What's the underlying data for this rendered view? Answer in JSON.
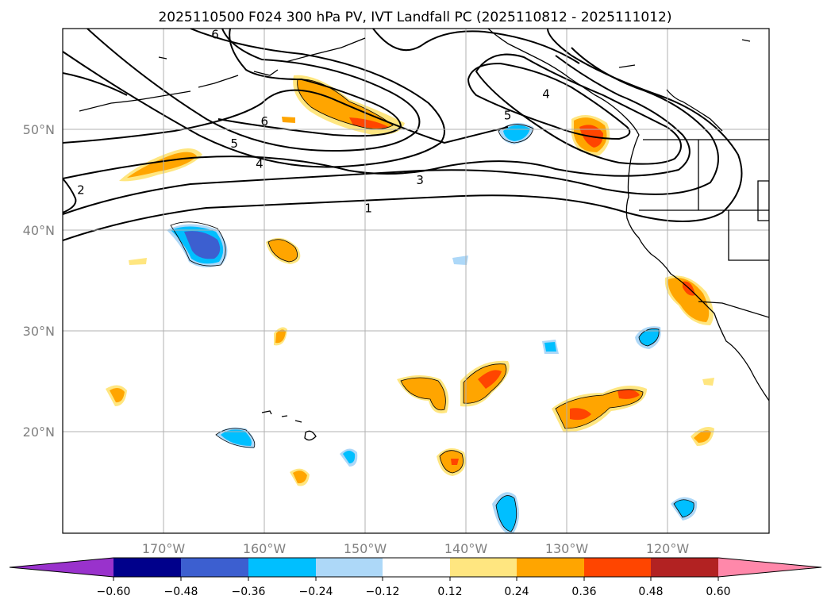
{
  "title": "2025110500 F024 300 hPa PV, IVT Landfall PC (2025110812 - 2025111012)",
  "map": {
    "lon_range": [
      -180,
      -110
    ],
    "lat_range": [
      10,
      60
    ],
    "lat_ticks": [
      {
        "value": 20,
        "label": "20°N"
      },
      {
        "value": 30,
        "label": "30°N"
      },
      {
        "value": 40,
        "label": "40°N"
      },
      {
        "value": 50,
        "label": "50°N"
      }
    ],
    "lon_ticks": [
      {
        "value": -170,
        "label": "170°W"
      },
      {
        "value": -160,
        "label": "160°W"
      },
      {
        "value": -150,
        "label": "150°W"
      },
      {
        "value": -140,
        "label": "140°W"
      },
      {
        "value": -130,
        "label": "130°W"
      },
      {
        "value": -120,
        "label": "120°W"
      }
    ],
    "contour_labels": [
      {
        "text": "1",
        "lon": -149.7,
        "lat": 42.2
      },
      {
        "text": "3",
        "lon": -144.6,
        "lat": 45.0
      },
      {
        "text": "4",
        "lon": -160.5,
        "lat": 46.6
      },
      {
        "text": "5",
        "lon": -163.0,
        "lat": 48.6
      },
      {
        "text": "5",
        "lon": -135.9,
        "lat": 51.4
      },
      {
        "text": "6",
        "lon": -160.0,
        "lat": 50.8
      },
      {
        "text": "6",
        "lon": -164.9,
        "lat": 59.4
      },
      {
        "text": "4",
        "lon": -132.1,
        "lat": 53.5
      },
      {
        "text": "2",
        "lon": -178.2,
        "lat": 44.0
      }
    ]
  },
  "colorbar": {
    "colors": [
      "#9932cc",
      "#00008b",
      "#3c5fd0",
      "#00bfff",
      "#add8f8",
      "#ffffff",
      "#ffe680",
      "#ffa500",
      "#ff4500",
      "#b22222",
      "#ff88aa"
    ],
    "labels": [
      "−0.60",
      "−0.48",
      "−0.36",
      "−0.24",
      "−0.12",
      "0.12",
      "0.24",
      "0.36",
      "0.48",
      "0.60"
    ]
  }
}
